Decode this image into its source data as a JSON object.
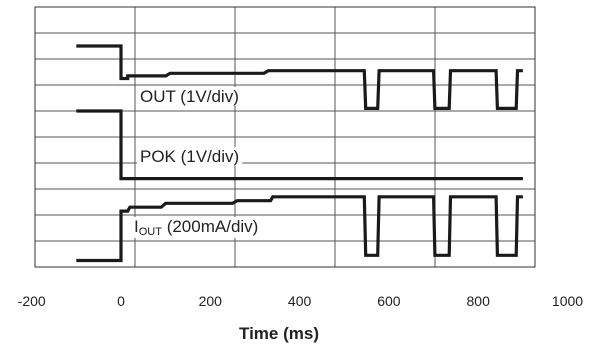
{
  "chart_data": {
    "type": "line",
    "xlabel": "Time (ms)",
    "xlim": [
      -200,
      1000
    ],
    "xticks": [
      -200,
      0,
      200,
      400,
      600,
      800,
      1000
    ],
    "grid": true,
    "grid_divisions": {
      "horizontal": 10,
      "vertical": 5
    },
    "series": [
      {
        "name": "OUT (1V/div)",
        "label_main": "OUT (1V/div)",
        "label_sub": "",
        "label_rest": "",
        "color": "#1a1a1a",
        "points": [
          [
            -100,
            8.5
          ],
          [
            0,
            8.5
          ],
          [
            0,
            7.25
          ],
          [
            15,
            7.25
          ],
          [
            15,
            7.35
          ],
          [
            100,
            7.35
          ],
          [
            110,
            7.45
          ],
          [
            320,
            7.45
          ],
          [
            330,
            7.55
          ],
          [
            545,
            7.55
          ],
          [
            548,
            6.1
          ],
          [
            575,
            6.1
          ],
          [
            578,
            7.55
          ],
          [
            700,
            7.55
          ],
          [
            703,
            6.1
          ],
          [
            735,
            6.1
          ],
          [
            738,
            7.55
          ],
          [
            840,
            7.55
          ],
          [
            843,
            6.1
          ],
          [
            885,
            6.1
          ],
          [
            888,
            7.55
          ],
          [
            900,
            7.55
          ]
        ]
      },
      {
        "name": "POK (1V/div)",
        "label_main": "POK (1V/div)",
        "label_sub": "",
        "label_rest": "",
        "color": "#1a1a1a",
        "points": [
          [
            -100,
            6.0
          ],
          [
            0,
            6.0
          ],
          [
            0,
            3.4
          ],
          [
            900,
            3.4
          ]
        ]
      },
      {
        "name": "IOUT (200mA/div)",
        "label_main": "I",
        "label_sub": "OUT",
        "label_rest": " (200mA/div)",
        "color": "#1a1a1a",
        "points": [
          [
            -100,
            0.25
          ],
          [
            0,
            0.25
          ],
          [
            0,
            2.15
          ],
          [
            15,
            2.15
          ],
          [
            20,
            2.3
          ],
          [
            90,
            2.3
          ],
          [
            100,
            2.45
          ],
          [
            250,
            2.45
          ],
          [
            260,
            2.55
          ],
          [
            335,
            2.55
          ],
          [
            340,
            2.7
          ],
          [
            545,
            2.7
          ],
          [
            548,
            0.45
          ],
          [
            575,
            0.45
          ],
          [
            578,
            2.7
          ],
          [
            700,
            2.7
          ],
          [
            703,
            0.45
          ],
          [
            735,
            0.45
          ],
          [
            738,
            2.7
          ],
          [
            840,
            2.7
          ],
          [
            843,
            0.45
          ],
          [
            885,
            0.45
          ],
          [
            888,
            2.7
          ],
          [
            900,
            2.7
          ]
        ]
      }
    ]
  }
}
